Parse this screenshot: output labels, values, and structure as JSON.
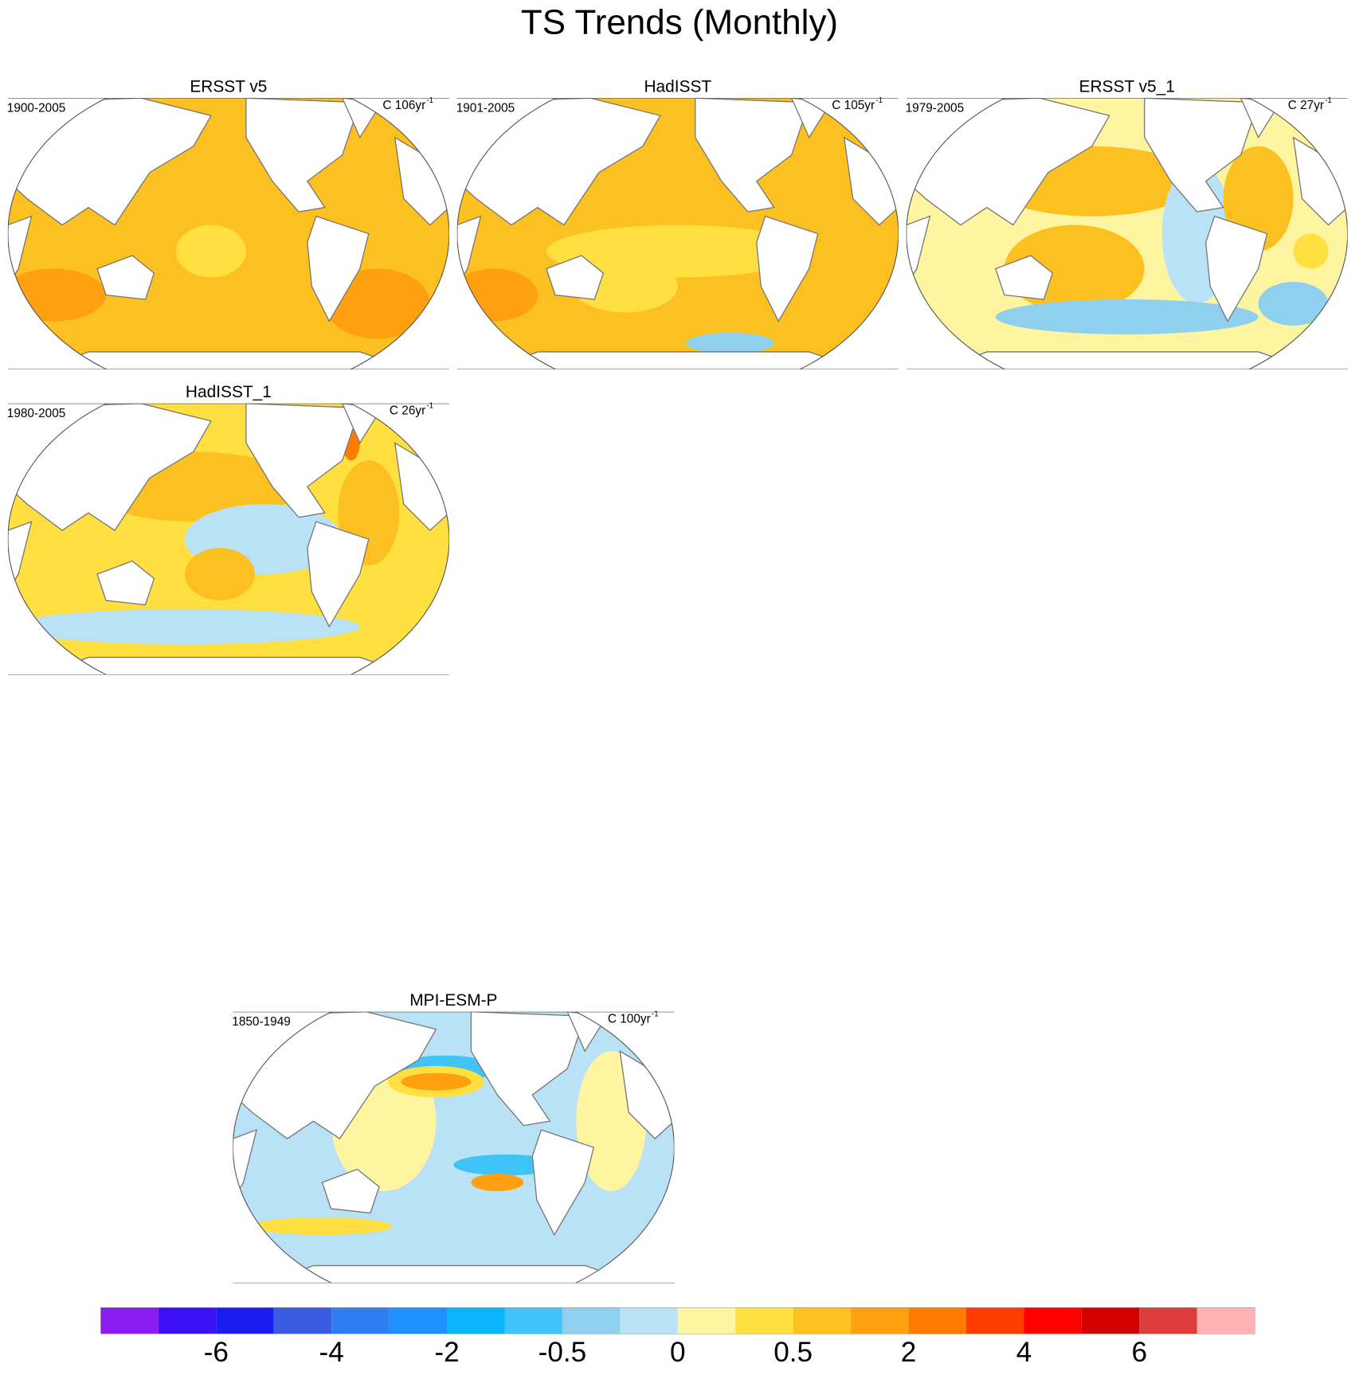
{
  "title": "TS Trends (Monthly)",
  "panels": [
    {
      "title": "ERSST v5",
      "period": "1900-2005",
      "units": "C 106yr",
      "exponent": "-1"
    },
    {
      "title": "HadISST",
      "period": "1901-2005",
      "units": "C 105yr",
      "exponent": "-1"
    },
    {
      "title": "ERSST v5_1",
      "period": "1979-2005",
      "units": "C 27yr",
      "exponent": "-1"
    },
    {
      "title": "HadISST_1",
      "period": "1980-2005",
      "units": "C 26yr",
      "exponent": "-1"
    },
    {
      "title": "MPI-ESM-P",
      "period": "1850-1949",
      "units": "C 100yr",
      "exponent": "-1"
    }
  ],
  "colorbar": {
    "colors": [
      "#8a1cf2",
      "#3c10f5",
      "#1a1cf0",
      "#3a5ae0",
      "#2f7bf0",
      "#1e90ff",
      "#0ab4ff",
      "#40c4f8",
      "#8fd0ee",
      "#b9e2f6",
      "#fff5a0",
      "#ffe040",
      "#fcc020",
      "#ffa010",
      "#ff7c00",
      "#ff3c00",
      "#ff0000",
      "#d20000",
      "#dc3c3c",
      "#ffb4b4"
    ],
    "labels": [
      -6,
      -4,
      -2,
      -0.5,
      0,
      0.5,
      2,
      4,
      6
    ]
  }
}
